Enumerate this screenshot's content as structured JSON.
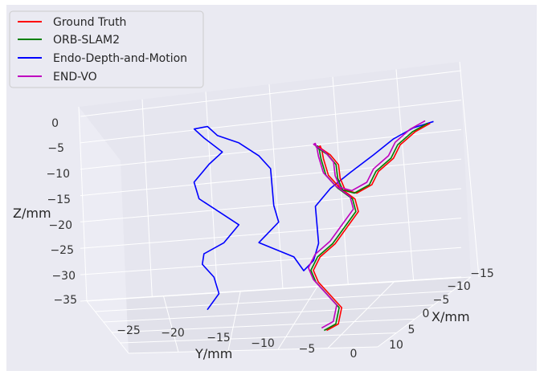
{
  "chart_data": {
    "type": "line",
    "projection": "3d",
    "title": "",
    "xlabel": "X/mm",
    "ylabel": "Y/mm",
    "zlabel": "Z/mm",
    "x_ticks": [
      "−15",
      "−10",
      "−5",
      "0",
      "5",
      "10"
    ],
    "y_ticks": [
      "−25",
      "−20",
      "−15",
      "−10",
      "−5",
      "0"
    ],
    "z_ticks": [
      "0",
      "−5",
      "−10",
      "−15",
      "−20",
      "−25",
      "−30",
      "−35"
    ],
    "xlim": [
      -17,
      13
    ],
    "ylim": [
      -29,
      1
    ],
    "zlim": [
      -37,
      3
    ],
    "grid": true,
    "legend_position": "top-left",
    "colors": {
      "ground_truth": "#ff0000",
      "orb_slam2": "#008000",
      "endo_dm": "#0000ff",
      "end_vo": "#bf00bf",
      "pane": "#eaeaf2"
    },
    "series": [
      {
        "name": "Ground Truth",
        "color": "#ff0000",
        "points": [
          [
            6,
            -7,
            -34
          ],
          [
            5,
            -6,
            -33
          ],
          [
            4,
            -6,
            -30
          ],
          [
            5,
            -7,
            -27
          ],
          [
            6,
            -8,
            -24
          ],
          [
            5,
            -9,
            -22
          ],
          [
            3,
            -9,
            -20
          ],
          [
            1,
            -8,
            -18
          ],
          [
            0,
            -7,
            -15
          ],
          [
            -1,
            -6,
            -12
          ],
          [
            0,
            -6,
            -9
          ],
          [
            2,
            -7,
            -6
          ],
          [
            3,
            -8,
            -3
          ],
          [
            2,
            -9,
            0
          ],
          [
            0,
            -10,
            1
          ],
          [
            -2,
            -11,
            1
          ],
          [
            -4,
            -12,
            0
          ],
          [
            -5,
            -11,
            -2
          ],
          [
            -5,
            -10,
            -4
          ],
          [
            -3,
            -9,
            -6
          ],
          [
            -2,
            -8,
            -8
          ],
          [
            -3,
            -7,
            -9
          ],
          [
            -5,
            -6,
            -8
          ],
          [
            -7,
            -6,
            -6
          ],
          [
            -9,
            -5,
            -4
          ],
          [
            -11,
            -5,
            -2
          ],
          [
            -13,
            -4,
            0
          ],
          [
            -15,
            -3,
            1
          ]
        ]
      },
      {
        "name": "ORB-SLAM2",
        "color": "#008000",
        "points": [
          [
            6,
            -7.3,
            -34
          ],
          [
            5,
            -6.3,
            -33
          ],
          [
            4,
            -6.3,
            -30
          ],
          [
            5,
            -7.3,
            -27
          ],
          [
            6,
            -8.3,
            -24
          ],
          [
            5,
            -9.3,
            -22
          ],
          [
            3,
            -9.3,
            -20
          ],
          [
            1,
            -8.3,
            -18
          ],
          [
            0,
            -7.3,
            -15
          ],
          [
            -1,
            -6.3,
            -12
          ],
          [
            0,
            -6.3,
            -9
          ],
          [
            2,
            -7.3,
            -6
          ],
          [
            3,
            -8.3,
            -3
          ],
          [
            2,
            -9.3,
            0
          ],
          [
            0,
            -10.3,
            1
          ],
          [
            -2,
            -11.3,
            1
          ],
          [
            -4,
            -12.3,
            0
          ],
          [
            -5,
            -11.3,
            -2
          ],
          [
            -5,
            -10.3,
            -4
          ],
          [
            -3,
            -9.3,
            -6
          ],
          [
            -2,
            -8.3,
            -8
          ],
          [
            -3,
            -7.3,
            -9
          ],
          [
            -5,
            -6.3,
            -8
          ],
          [
            -7,
            -6.3,
            -6
          ],
          [
            -9,
            -5.3,
            -4
          ],
          [
            -11,
            -5.3,
            -2
          ],
          [
            -13,
            -4.3,
            0
          ],
          [
            -15,
            -3.3,
            1
          ]
        ]
      },
      {
        "name": "Endo-Depth-and-Motion",
        "color": "#0000ff",
        "points": [
          [
            -3,
            -25,
            -34
          ],
          [
            -4,
            -24,
            -31
          ],
          [
            -5,
            -25,
            -28
          ],
          [
            -4,
            -26,
            -25
          ],
          [
            -2,
            -25,
            -22
          ],
          [
            -3,
            -23,
            -20
          ],
          [
            -5,
            -22,
            -17
          ],
          [
            -4,
            -24,
            -14
          ],
          [
            -3,
            -26,
            -11
          ],
          [
            -4,
            -27,
            -8
          ],
          [
            -6,
            -26,
            -5
          ],
          [
            -5,
            -24,
            -2
          ],
          [
            -7,
            -27,
            0
          ],
          [
            -9,
            -29,
            1
          ],
          [
            -8,
            -27,
            2
          ],
          [
            -6,
            -25,
            1
          ],
          [
            -5,
            -22,
            0
          ],
          [
            -6,
            -20,
            -3
          ],
          [
            -7,
            -19,
            -6
          ],
          [
            -5,
            -18,
            -9
          ],
          [
            -3,
            -17,
            -12
          ],
          [
            -2,
            -16,
            -15
          ],
          [
            -4,
            -18,
            -18
          ],
          [
            -6,
            -20,
            -21
          ],
          [
            -8,
            -19,
            -23
          ],
          [
            -9,
            -17,
            -25
          ],
          [
            -7,
            -15,
            -27
          ],
          [
            -5,
            -13,
            -24
          ],
          [
            -4,
            -12,
            -20
          ],
          [
            -6,
            -13,
            -17
          ],
          [
            -8,
            -14,
            -14
          ],
          [
            -10,
            -13,
            -11
          ],
          [
            -11,
            -11,
            -8
          ],
          [
            -13,
            -9,
            -5
          ],
          [
            -14,
            -7,
            -2
          ],
          [
            -15,
            -5,
            0
          ],
          [
            -16,
            -3,
            1
          ]
        ]
      },
      {
        "name": "END-VO",
        "color": "#bf00bf",
        "points": [
          [
            6,
            -7.6,
            -33.5
          ],
          [
            5,
            -6.6,
            -32.5
          ],
          [
            4,
            -6.6,
            -29.5
          ],
          [
            5,
            -7.6,
            -26.5
          ],
          [
            6,
            -8.6,
            -23.5
          ],
          [
            5,
            -9.6,
            -21.5
          ],
          [
            3,
            -9.6,
            -19.5
          ],
          [
            1,
            -8.6,
            -17.5
          ],
          [
            0,
            -7.6,
            -14.5
          ],
          [
            -1,
            -6.6,
            -11.5
          ],
          [
            0,
            -6.6,
            -8.5
          ],
          [
            2,
            -7.6,
            -5.5
          ],
          [
            3,
            -8.6,
            -2.5
          ],
          [
            2,
            -9.6,
            0.5
          ],
          [
            0,
            -10.6,
            1.5
          ],
          [
            -2,
            -11.6,
            1.5
          ],
          [
            -4,
            -12.6,
            0.5
          ],
          [
            -5,
            -11.6,
            -1.5
          ],
          [
            -5,
            -10.6,
            -3.5
          ],
          [
            -3,
            -9.6,
            -5.5
          ],
          [
            -2,
            -8.6,
            -7.5
          ],
          [
            -3,
            -7.6,
            -8.5
          ],
          [
            -5,
            -6.6,
            -7.5
          ],
          [
            -7,
            -6.6,
            -5.5
          ],
          [
            -9,
            -5.6,
            -3.5
          ],
          [
            -11,
            -5.6,
            -1.5
          ],
          [
            -13,
            -4.6,
            0.5
          ],
          [
            -15,
            -3.6,
            1.5
          ]
        ]
      }
    ]
  }
}
